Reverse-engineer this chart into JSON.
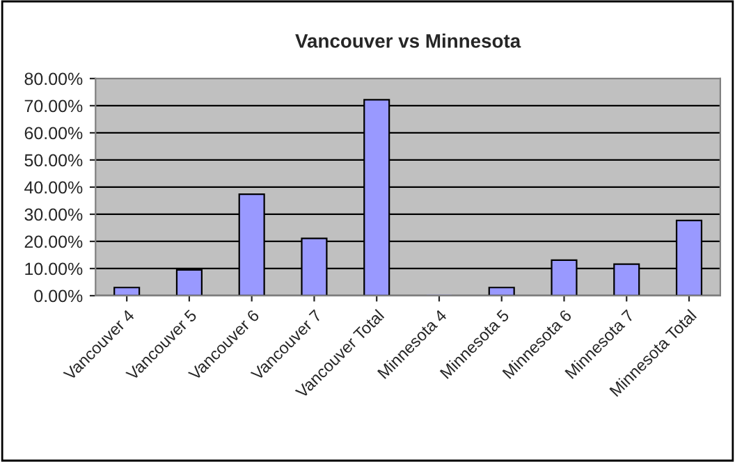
{
  "chart_data": {
    "type": "bar",
    "title": "Vancouver vs Minnesota",
    "categories": [
      "Vancouver 4",
      "Vancouver 5",
      "Vancouver 6",
      "Vancouver 7",
      "Vancouver Total",
      "Minnesota 4",
      "Minnesota 5",
      "Minnesota 6",
      "Minnesota 7",
      "Minnesota Total"
    ],
    "values": [
      3,
      9.5,
      37.4,
      21.1,
      72.2,
      0,
      3,
      13.1,
      11.6,
      27.7
    ],
    "color": "#9999ff",
    "ylim": [
      0,
      80
    ],
    "yticks": [
      {
        "value": 0,
        "label": "0.00%"
      },
      {
        "value": 10,
        "label": "10.00%"
      },
      {
        "value": 20,
        "label": "20.00%"
      },
      {
        "value": 30,
        "label": "30.00%"
      },
      {
        "value": 40,
        "label": "40.00%"
      },
      {
        "value": 50,
        "label": "50.00%"
      },
      {
        "value": 60,
        "label": "60.00%"
      },
      {
        "value": 70,
        "label": "70.00%"
      },
      {
        "value": 80,
        "label": "80.00%"
      }
    ],
    "grid": "y",
    "legend": false
  }
}
